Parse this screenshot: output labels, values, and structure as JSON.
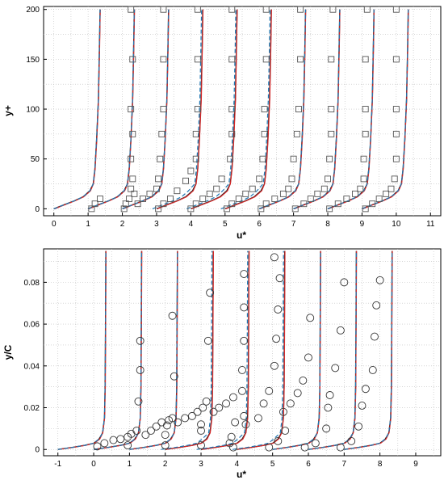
{
  "chart_data": [
    {
      "type": "line",
      "xlabel": "u*",
      "ylabel": "y+",
      "xlim": [
        -0.3,
        11.3
      ],
      "ylim": [
        -7,
        203
      ],
      "xticks": [
        0,
        1,
        2,
        3,
        4,
        5,
        6,
        7,
        8,
        9,
        10,
        11
      ],
      "yticks": [
        0,
        50,
        100,
        150,
        200
      ],
      "grid": true,
      "profile_offsets": [
        0,
        1,
        2,
        3,
        4,
        5,
        6,
        7,
        8,
        9
      ],
      "profile_shape_x": [
        0,
        0.3,
        0.6,
        0.85,
        1.05,
        1.15,
        1.2,
        1.25,
        1.3,
        1.33,
        1.35
      ],
      "profile_shape_y": [
        0,
        4,
        8,
        12,
        18,
        25,
        40,
        70,
        110,
        160,
        200
      ],
      "series_colors": {
        "line_a": "#1a1a1a",
        "line_b": "#d62728",
        "line_c": "#1f77b4"
      },
      "markers": {
        "shape": "square",
        "points": [
          [
            1.1,
            0
          ],
          [
            1.2,
            5
          ],
          [
            1.35,
            10
          ],
          [
            2.05,
            0
          ],
          [
            2.1,
            5
          ],
          [
            2.2,
            10
          ],
          [
            2.35,
            15
          ],
          [
            2.25,
            20
          ],
          [
            2.3,
            30
          ],
          [
            2.25,
            50
          ],
          [
            2.3,
            75
          ],
          [
            2.25,
            100
          ],
          [
            2.3,
            150
          ],
          [
            2.25,
            200
          ],
          [
            2.45,
            5
          ],
          [
            2.6,
            10
          ],
          [
            2.8,
            15
          ],
          [
            3.0,
            20
          ],
          [
            3.05,
            30
          ],
          [
            3.1,
            50
          ],
          [
            3.15,
            75
          ],
          [
            3.2,
            100
          ],
          [
            3.2,
            150
          ],
          [
            3.2,
            200
          ],
          [
            3.05,
            0
          ],
          [
            3.2,
            5
          ],
          [
            3.4,
            10
          ],
          [
            3.6,
            18
          ],
          [
            3.85,
            28
          ],
          [
            4.0,
            38
          ],
          [
            4.15,
            50
          ],
          [
            4.15,
            75
          ],
          [
            4.2,
            100
          ],
          [
            4.2,
            150
          ],
          [
            4.2,
            200
          ],
          [
            4.0,
            0
          ],
          [
            4.15,
            5
          ],
          [
            4.35,
            10
          ],
          [
            4.55,
            15
          ],
          [
            4.75,
            20
          ],
          [
            4.9,
            30
          ],
          [
            5.15,
            50
          ],
          [
            5.2,
            75
          ],
          [
            5.2,
            100
          ],
          [
            5.2,
            150
          ],
          [
            5.2,
            200
          ],
          [
            5.05,
            0
          ],
          [
            5.2,
            5
          ],
          [
            5.4,
            10
          ],
          [
            5.6,
            15
          ],
          [
            5.8,
            20
          ],
          [
            6.0,
            30
          ],
          [
            6.1,
            50
          ],
          [
            6.15,
            75
          ],
          [
            6.15,
            100
          ],
          [
            6.2,
            150
          ],
          [
            6.2,
            200
          ],
          [
            6.05,
            0
          ],
          [
            6.2,
            5
          ],
          [
            6.45,
            10
          ],
          [
            6.7,
            15
          ],
          [
            6.85,
            20
          ],
          [
            6.95,
            30
          ],
          [
            7.0,
            50
          ],
          [
            7.1,
            75
          ],
          [
            7.15,
            100
          ],
          [
            7.2,
            150
          ],
          [
            7.2,
            200
          ],
          [
            7.05,
            0
          ],
          [
            7.3,
            5
          ],
          [
            7.5,
            10
          ],
          [
            7.7,
            15
          ],
          [
            7.9,
            20
          ],
          [
            8.0,
            30
          ],
          [
            8.05,
            50
          ],
          [
            8.1,
            75
          ],
          [
            8.1,
            100
          ],
          [
            8.1,
            150
          ],
          [
            8.15,
            200
          ],
          [
            8.05,
            0
          ],
          [
            8.3,
            5
          ],
          [
            8.55,
            10
          ],
          [
            8.8,
            15
          ],
          [
            8.95,
            20
          ],
          [
            9.05,
            30
          ],
          [
            9.05,
            50
          ],
          [
            9.1,
            75
          ],
          [
            9.1,
            100
          ],
          [
            9.1,
            150
          ],
          [
            9.15,
            200
          ],
          [
            9.1,
            0
          ],
          [
            9.3,
            5
          ],
          [
            9.5,
            10
          ],
          [
            9.7,
            15
          ],
          [
            9.85,
            20
          ],
          [
            9.95,
            30
          ],
          [
            10.0,
            50
          ],
          [
            10.0,
            75
          ],
          [
            10.0,
            100
          ],
          [
            10.0,
            150
          ],
          [
            10.0,
            200
          ]
        ]
      }
    },
    {
      "type": "line",
      "xlabel": "u*",
      "ylabel": "y/C",
      "xlim": [
        -1.4,
        9.7
      ],
      "ylim": [
        -0.003,
        0.096
      ],
      "xticks": [
        -1,
        0,
        1,
        2,
        3,
        4,
        5,
        6,
        7,
        8,
        9
      ],
      "yticks": [
        0,
        0.02,
        0.04,
        0.06,
        0.08
      ],
      "ytick_labels": [
        "0",
        "0.02",
        "0.04",
        "0.06",
        "0.08"
      ],
      "grid": true,
      "profile_offsets": [
        0,
        1,
        2,
        3,
        4,
        5,
        6,
        7,
        8
      ],
      "profile_shape_x": [
        -1.0,
        -0.6,
        -0.25,
        0.0,
        0.15,
        0.25,
        0.3,
        0.32,
        0.33,
        0.34
      ],
      "profile_shape_y": [
        0,
        0.001,
        0.002,
        0.003,
        0.005,
        0.008,
        0.015,
        0.03,
        0.06,
        0.095
      ],
      "series_colors": {
        "line_a": "#1a1a1a",
        "line_b": "#d62728",
        "line_c": "#1f77b4"
      },
      "markers": {
        "shape": "circle",
        "points": [
          [
            0.1,
            0.0015
          ],
          [
            0.3,
            0.003
          ],
          [
            0.55,
            0.0045
          ],
          [
            0.75,
            0.005
          ],
          [
            0.95,
            0.006
          ],
          [
            1.05,
            0.0075
          ],
          [
            1.2,
            0.009
          ],
          [
            1.25,
            0.023
          ],
          [
            1.3,
            0.038
          ],
          [
            1.3,
            0.052
          ],
          [
            0.95,
            0.002
          ],
          [
            1.45,
            0.007
          ],
          [
            1.6,
            0.009
          ],
          [
            1.75,
            0.011
          ],
          [
            1.9,
            0.013
          ],
          [
            2.05,
            0.0115
          ],
          [
            2.1,
            0.014
          ],
          [
            2.2,
            0.015
          ],
          [
            2.25,
            0.035
          ],
          [
            2.2,
            0.064
          ],
          [
            2.0,
            0.002
          ],
          [
            2.0,
            0.007
          ],
          [
            2.35,
            0.013
          ],
          [
            2.55,
            0.015
          ],
          [
            2.75,
            0.016
          ],
          [
            2.9,
            0.018
          ],
          [
            3.05,
            0.02
          ],
          [
            3.15,
            0.023
          ],
          [
            3.2,
            0.052
          ],
          [
            3.25,
            0.075
          ],
          [
            3.0,
            0.002
          ],
          [
            3.0,
            0.009
          ],
          [
            3.0,
            0.012
          ],
          [
            3.35,
            0.018
          ],
          [
            3.5,
            0.02
          ],
          [
            3.7,
            0.022
          ],
          [
            3.9,
            0.025
          ],
          [
            4.15,
            0.028
          ],
          [
            4.15,
            0.038
          ],
          [
            4.2,
            0.052
          ],
          [
            4.2,
            0.068
          ],
          [
            4.2,
            0.084
          ],
          [
            3.8,
            0.003
          ],
          [
            3.9,
            0.001
          ],
          [
            3.85,
            0.006
          ],
          [
            3.95,
            0.013
          ],
          [
            4.2,
            0.016
          ],
          [
            4.25,
            0.012
          ],
          [
            4.6,
            0.015
          ],
          [
            4.75,
            0.022
          ],
          [
            4.9,
            0.028
          ],
          [
            5.05,
            0.04
          ],
          [
            5.1,
            0.053
          ],
          [
            5.15,
            0.067
          ],
          [
            5.2,
            0.082
          ],
          [
            5.05,
            0.092
          ],
          [
            4.9,
            0.001
          ],
          [
            5.15,
            0.004
          ],
          [
            5.35,
            0.009
          ],
          [
            5.3,
            0.018
          ],
          [
            5.5,
            0.022
          ],
          [
            5.7,
            0.027
          ],
          [
            5.85,
            0.033
          ],
          [
            6.0,
            0.044
          ],
          [
            6.05,
            0.063
          ],
          [
            5.9,
            0.001
          ],
          [
            6.2,
            0.003
          ],
          [
            6.5,
            0.01
          ],
          [
            6.55,
            0.02
          ],
          [
            6.6,
            0.026
          ],
          [
            6.75,
            0.039
          ],
          [
            6.9,
            0.057
          ],
          [
            7.0,
            0.08
          ],
          [
            6.9,
            0.001
          ],
          [
            7.2,
            0.004
          ],
          [
            7.4,
            0.011
          ],
          [
            7.5,
            0.021
          ],
          [
            7.6,
            0.029
          ],
          [
            7.8,
            0.038
          ],
          [
            7.85,
            0.054
          ],
          [
            7.9,
            0.069
          ],
          [
            8.0,
            0.081
          ]
        ]
      }
    }
  ]
}
